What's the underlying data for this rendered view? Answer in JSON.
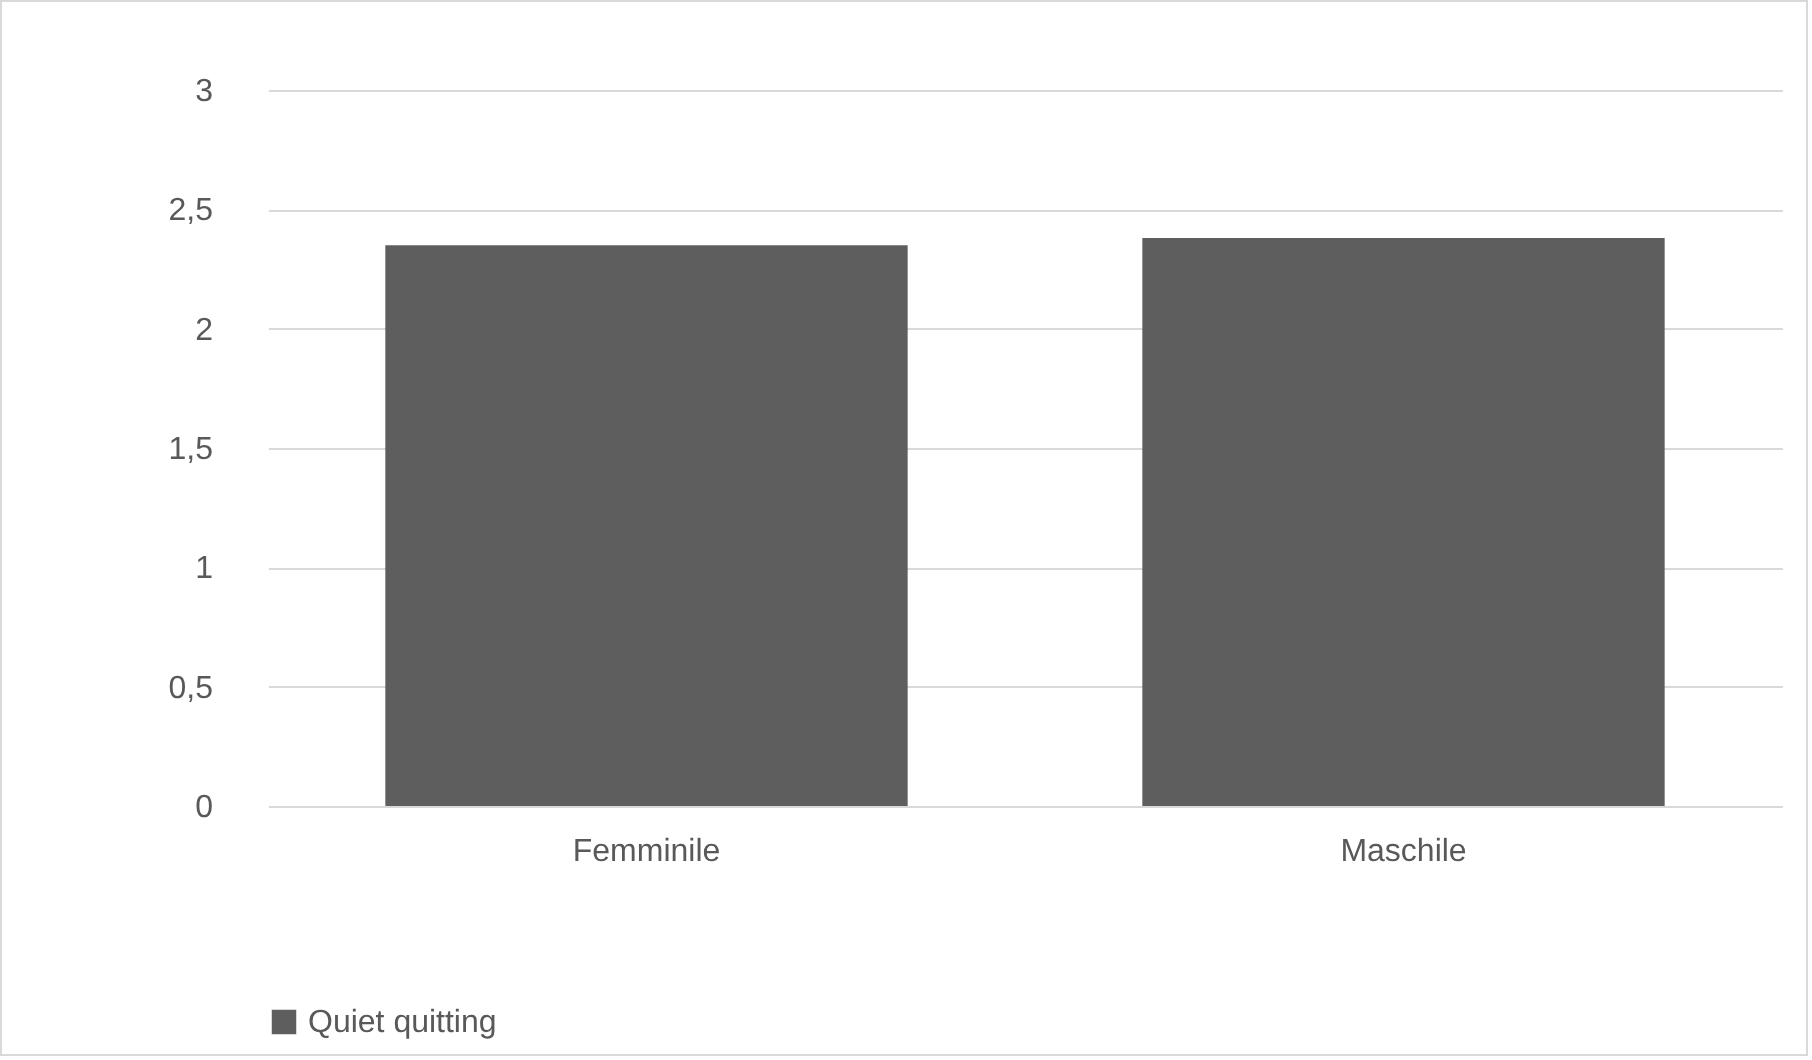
{
  "chart_data": {
    "type": "bar",
    "categories": [
      "Femminile",
      "Maschile"
    ],
    "series": [
      {
        "name": "Quiet quitting",
        "color": "#5e5e5e",
        "values": [
          2.35,
          2.38
        ]
      }
    ],
    "ylim": [
      0,
      3
    ],
    "yticks": [
      0,
      {
        "value": 0.5,
        "label": "0,5"
      },
      1,
      {
        "value": 1.5,
        "label": "1,5"
      },
      2,
      {
        "value": 2.5,
        "label": "2,5"
      },
      3
    ],
    "grid": "y",
    "legend": "bottom"
  }
}
